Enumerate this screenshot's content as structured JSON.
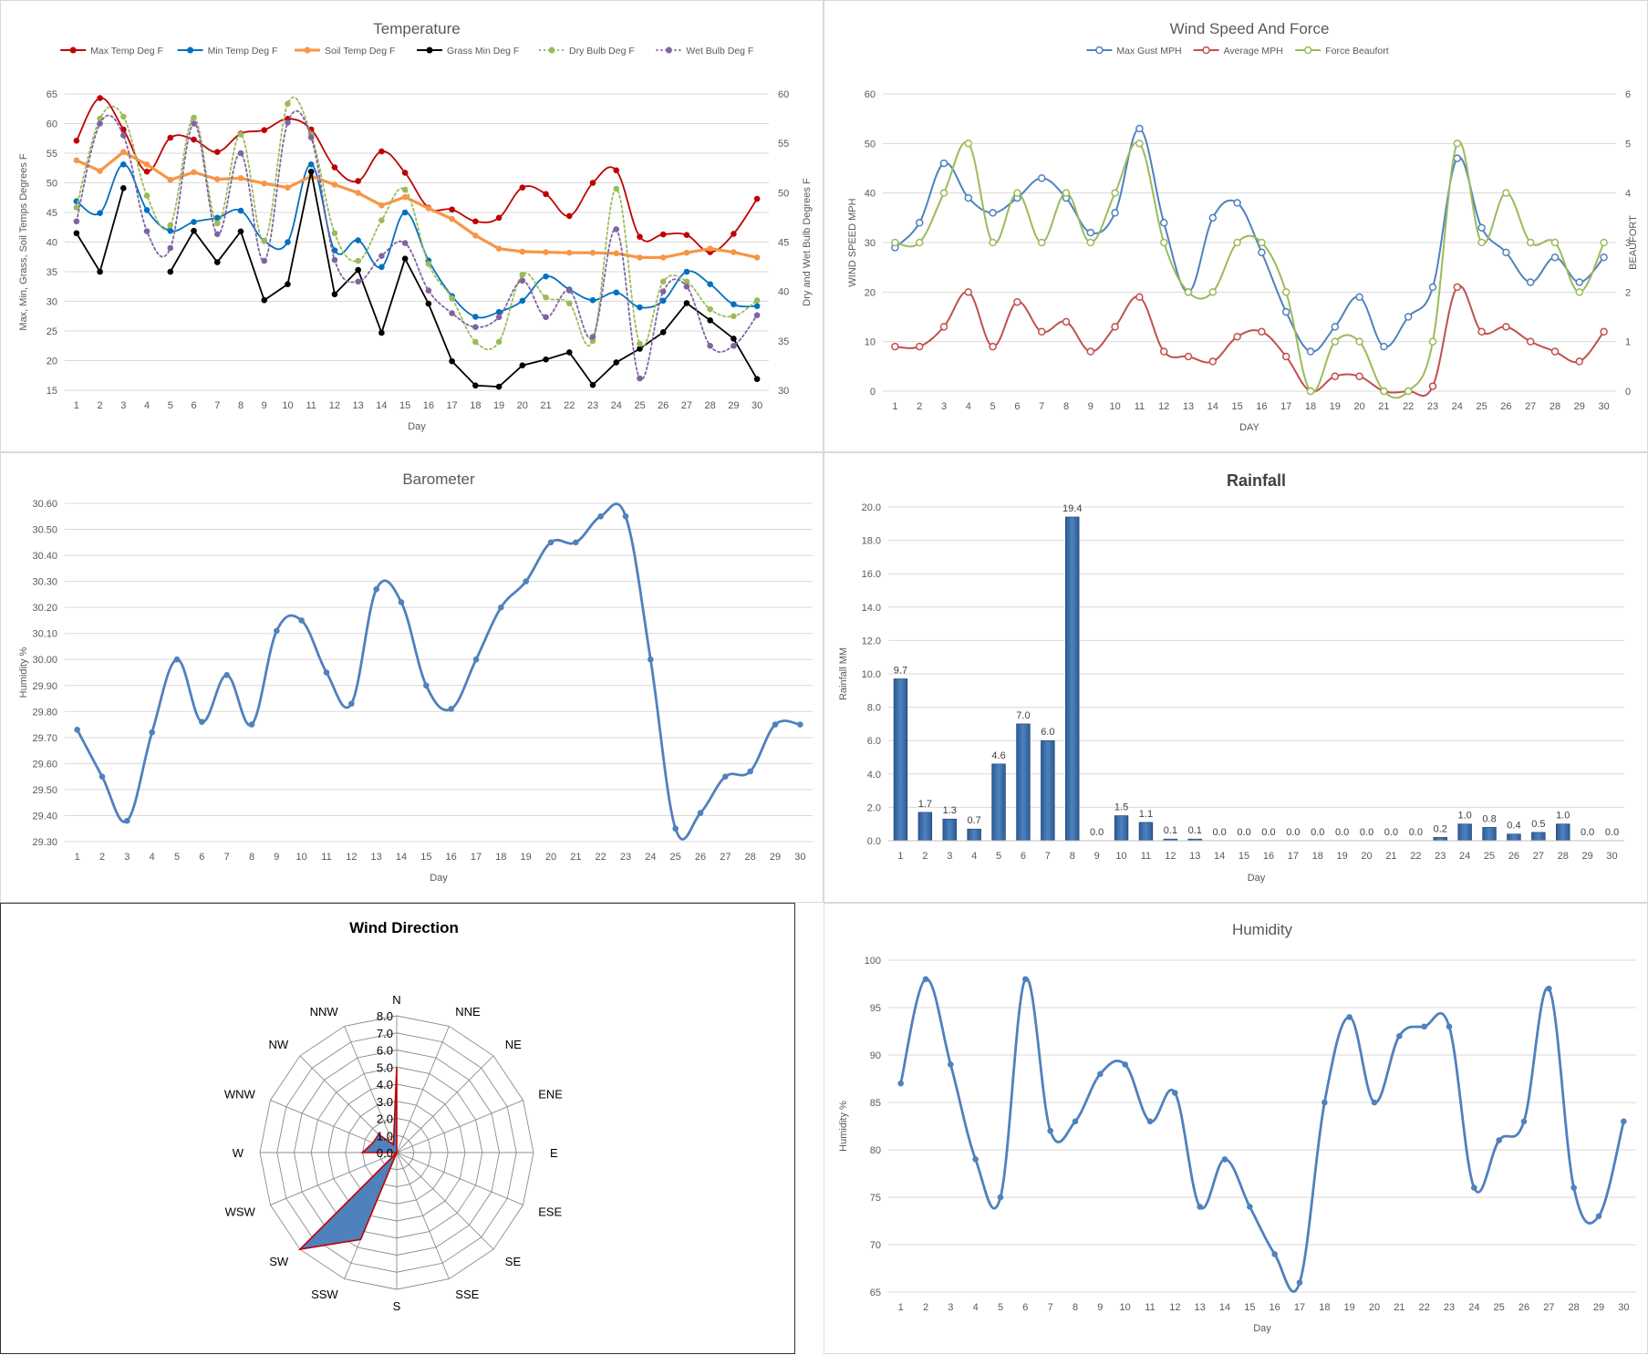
{
  "chart_data": [
    {
      "id": "temperature",
      "type": "line",
      "title": "Temperature",
      "xlabel": "Day",
      "ylabel": "Max, Min, Grass, Soil Temps Degrees F",
      "y2label": "Dry and Wet Bulb Degrees F",
      "ylim": [
        15,
        65
      ],
      "yticks": [
        15,
        20,
        25,
        30,
        35,
        40,
        45,
        50,
        55,
        60,
        65
      ],
      "y2lim": [
        30,
        60
      ],
      "y2ticks": [
        30,
        35,
        40,
        45,
        50,
        55,
        60
      ],
      "x": [
        1,
        2,
        3,
        4,
        5,
        6,
        7,
        8,
        9,
        10,
        11,
        12,
        13,
        14,
        15,
        16,
        17,
        18,
        19,
        20,
        21,
        22,
        23,
        24,
        25,
        26,
        27,
        28,
        29,
        30
      ],
      "legend_position": "top",
      "series": [
        {
          "name": "Max Temp Deg F",
          "color": "#c00000",
          "axis": "left",
          "smooth": true,
          "values": [
            57.1,
            64.3,
            59.0,
            51.9,
            57.6,
            57.3,
            55.2,
            58.3,
            58.9,
            60.8,
            59.0,
            52.6,
            50.3,
            55.3,
            51.7,
            45.8,
            45.5,
            43.5,
            44.1,
            49.2,
            48.1,
            44.4,
            50.0,
            52.1,
            40.9,
            41.3,
            41.2,
            38.3,
            41.4,
            47.3
          ]
        },
        {
          "name": "Min Temp Deg F",
          "color": "#0070c0",
          "axis": "left",
          "smooth": true,
          "values": [
            46.9,
            44.9,
            53.1,
            45.4,
            41.9,
            43.4,
            44.1,
            45.3,
            40.2,
            40.0,
            53.1,
            38.6,
            40.3,
            35.8,
            45.0,
            36.9,
            30.9,
            27.4,
            28.2,
            30.1,
            34.2,
            32.0,
            30.2,
            31.5,
            29.0,
            30.1,
            35.0,
            32.9,
            29.5,
            29.2
          ]
        },
        {
          "name": "Soil Temp Deg F",
          "color": "#f79646",
          "axis": "left",
          "smooth": false,
          "thick": true,
          "values": [
            53.8,
            52.0,
            55.2,
            53.1,
            50.5,
            51.8,
            50.6,
            50.8,
            49.9,
            49.2,
            51.1,
            49.7,
            48.3,
            46.2,
            47.6,
            45.7,
            43.9,
            41.1,
            38.9,
            38.4,
            38.3,
            38.2,
            38.2,
            38.1,
            37.4,
            37.4,
            38.2,
            38.9,
            38.3,
            37.4
          ]
        },
        {
          "name": "Grass Min Deg F",
          "color": "#000000",
          "axis": "left",
          "smooth": false,
          "values": [
            41.5,
            35.0,
            49.1,
            null,
            35.0,
            41.9,
            36.6,
            41.8,
            30.2,
            32.9,
            51.9,
            31.2,
            35.3,
            24.7,
            37.2,
            29.6,
            19.9,
            15.8,
            15.6,
            19.2,
            20.2,
            21.4,
            15.9,
            19.7,
            22.0,
            24.8,
            29.7,
            26.8,
            23.7,
            16.9
          ]
        },
        {
          "name": "Dry Bulb Deg F",
          "color": "#9bbb59",
          "axis": "right",
          "smooth": true,
          "dotted": true,
          "values": [
            48.5,
            57.5,
            57.7,
            49.7,
            46.7,
            57.6,
            46.9,
            55.9,
            45.1,
            59.0,
            55.9,
            45.9,
            43.1,
            47.2,
            50.3,
            42.8,
            39.3,
            34.9,
            34.9,
            41.7,
            39.4,
            38.8,
            35.0,
            50.4,
            34.7,
            41.0,
            41.0,
            38.2,
            37.5,
            39.1
          ]
        },
        {
          "name": "Wet Bulb Deg F",
          "color": "#8064a2",
          "axis": "right",
          "smooth": true,
          "dotted": true,
          "values": [
            47.1,
            57.0,
            55.8,
            46.1,
            44.4,
            57.0,
            45.8,
            54.0,
            43.1,
            57.1,
            55.6,
            43.2,
            41.0,
            43.6,
            44.9,
            40.1,
            37.8,
            36.4,
            37.4,
            41.1,
            37.4,
            40.1,
            35.4,
            46.3,
            31.2,
            40.0,
            40.5,
            34.5,
            34.5,
            37.6
          ]
        }
      ]
    },
    {
      "id": "wind-speed",
      "type": "line",
      "title": "Wind Speed And Force",
      "xlabel": "DAY",
      "ylabel": "WIND SPEED MPH",
      "y2label": "BEAUFORT",
      "ylim": [
        0,
        60
      ],
      "yticks": [
        0,
        10,
        20,
        30,
        40,
        50,
        60
      ],
      "y2lim": [
        0,
        6
      ],
      "y2ticks": [
        0,
        1,
        2,
        3,
        4,
        5,
        6
      ],
      "x": [
        1,
        2,
        3,
        4,
        5,
        6,
        7,
        8,
        9,
        10,
        11,
        12,
        13,
        14,
        15,
        16,
        17,
        18,
        19,
        20,
        21,
        22,
        23,
        24,
        25,
        26,
        27,
        28,
        29,
        30
      ],
      "legend_position": "top",
      "series": [
        {
          "name": "Max Gust MPH",
          "color": "#4f81bd",
          "axis": "left",
          "smooth": true,
          "values": [
            29,
            34,
            46,
            39,
            36,
            39,
            43,
            39,
            32,
            36,
            53,
            34,
            20,
            35,
            38,
            28,
            16,
            8,
            13,
            19,
            9,
            15,
            21,
            47,
            33,
            28,
            22,
            27,
            22,
            27
          ]
        },
        {
          "name": "Average MPH",
          "color": "#c0504d",
          "axis": "left",
          "smooth": true,
          "values": [
            9,
            9,
            13,
            20,
            9,
            18,
            12,
            14,
            8,
            13,
            19,
            8,
            7,
            6,
            11,
            12,
            7,
            0,
            3,
            3,
            0,
            0,
            1,
            21,
            12,
            13,
            10,
            8,
            6,
            12
          ]
        },
        {
          "name": "Force Beaufort",
          "color": "#9bbb59",
          "axis": "right",
          "smooth": true,
          "values": [
            3,
            3,
            4,
            5,
            3,
            4,
            3,
            4,
            3,
            4,
            5,
            3,
            2,
            2,
            3,
            3,
            2,
            0,
            1,
            1,
            0,
            0,
            1,
            5,
            3,
            4,
            3,
            3,
            2,
            3
          ]
        }
      ]
    },
    {
      "id": "barometer",
      "type": "line",
      "title": "Barometer",
      "xlabel": "Day",
      "ylabel": "Humidity %",
      "ylim": [
        29.3,
        30.6
      ],
      "yticks": [
        "29.30",
        "29.40",
        "29.50",
        "29.60",
        "29.70",
        "29.80",
        "29.90",
        "30.00",
        "30.10",
        "30.20",
        "30.30",
        "30.40",
        "30.50",
        "30.60"
      ],
      "x": [
        1,
        2,
        3,
        4,
        5,
        6,
        7,
        8,
        9,
        10,
        11,
        12,
        13,
        14,
        15,
        16,
        17,
        18,
        19,
        20,
        21,
        22,
        23,
        24,
        25,
        26,
        27,
        28,
        29,
        30
      ],
      "series": [
        {
          "name": "",
          "color": "#4f81bd",
          "smooth": true,
          "values": [
            29.73,
            29.55,
            29.38,
            29.72,
            30.0,
            29.76,
            29.94,
            29.75,
            30.11,
            30.15,
            29.95,
            29.83,
            30.27,
            30.22,
            29.9,
            29.81,
            30.0,
            30.2,
            30.3,
            30.45,
            30.45,
            30.55,
            30.55,
            30.0,
            29.35,
            29.41,
            29.55,
            29.57,
            29.75,
            29.75
          ]
        }
      ]
    },
    {
      "id": "rainfall",
      "type": "bar",
      "title": "Rainfall",
      "xlabel": "Day",
      "ylabel": "Rainfall MM",
      "ylim": [
        0,
        20
      ],
      "yticks": [
        "0.0",
        "2.0",
        "4.0",
        "6.0",
        "8.0",
        "10.0",
        "12.0",
        "14.0",
        "16.0",
        "18.0",
        "20.0"
      ],
      "categories": [
        "1",
        "2",
        "3",
        "4",
        "5",
        "6",
        "7",
        "8",
        "9",
        "10",
        "11",
        "12",
        "13",
        "14",
        "15",
        "16",
        "17",
        "18",
        "19",
        "20",
        "21",
        "22",
        "23",
        "24",
        "25",
        "26",
        "27",
        "28",
        "29",
        "30"
      ],
      "values": [
        9.7,
        1.7,
        1.3,
        0.7,
        4.6,
        7.0,
        6.0,
        19.4,
        0.0,
        1.5,
        1.1,
        0.1,
        0.1,
        0.0,
        0.0,
        0.0,
        0.0,
        0.0,
        0.0,
        0.0,
        0.0,
        0.0,
        0.2,
        1.0,
        0.8,
        0.4,
        0.5,
        1.0,
        0.0,
        0.0
      ],
      "labels": [
        "9.7",
        "1.7",
        "1.3",
        "0.7",
        "4.6",
        "7.0",
        "6.0",
        "19.4",
        "0.0",
        "1.5",
        "1.1",
        "0.1",
        "0.1",
        "0.0",
        "0.0",
        "0.0",
        "0.0",
        "0.0",
        "0.0",
        "0.0",
        "0.0",
        "0.0",
        "0.2",
        "1.0",
        "0.8",
        "0.4",
        "0.5",
        "1.0",
        "0.0",
        "0.0"
      ],
      "color": "#4f81bd"
    },
    {
      "id": "wind-direction",
      "type": "radar",
      "title": "Wind Direction",
      "directions": [
        "N",
        "NNE",
        "NE",
        "ENE",
        "E",
        "ESE",
        "SE",
        "SSE",
        "S",
        "SSW",
        "SW",
        "WSW",
        "W",
        "WNW",
        "NW",
        "NNW"
      ],
      "rings": [
        "0.0",
        "1.0",
        "2.0",
        "3.0",
        "4.0",
        "5.0",
        "6.0",
        "7.0",
        "8.0"
      ],
      "rmax": 8,
      "series": [
        {
          "name": "",
          "color": "#4f81bd",
          "outline": "#c00000",
          "values": [
            5.0,
            0,
            0,
            0,
            0,
            0,
            0,
            0,
            0,
            5.5,
            8.0,
            0,
            2.0,
            1.5,
            1.5,
            0.5
          ]
        }
      ]
    },
    {
      "id": "humidity",
      "type": "line",
      "title": "Humidity",
      "xlabel": "Day",
      "ylabel": "Humidity %",
      "ylim": [
        65,
        100
      ],
      "yticks": [
        65,
        70,
        75,
        80,
        85,
        90,
        95,
        100
      ],
      "x": [
        1,
        2,
        3,
        4,
        5,
        6,
        7,
        8,
        9,
        10,
        11,
        12,
        13,
        14,
        15,
        16,
        17,
        18,
        19,
        20,
        21,
        22,
        23,
        24,
        25,
        26,
        27,
        28,
        29,
        30
      ],
      "series": [
        {
          "name": "",
          "color": "#4f81bd",
          "smooth": true,
          "values": [
            87,
            98,
            89,
            79,
            75,
            98,
            82,
            83,
            88,
            89,
            83,
            86,
            74,
            79,
            74,
            69,
            66,
            85,
            94,
            85,
            92,
            93,
            93,
            76,
            81,
            83,
            97,
            76,
            73,
            83
          ]
        }
      ]
    }
  ]
}
